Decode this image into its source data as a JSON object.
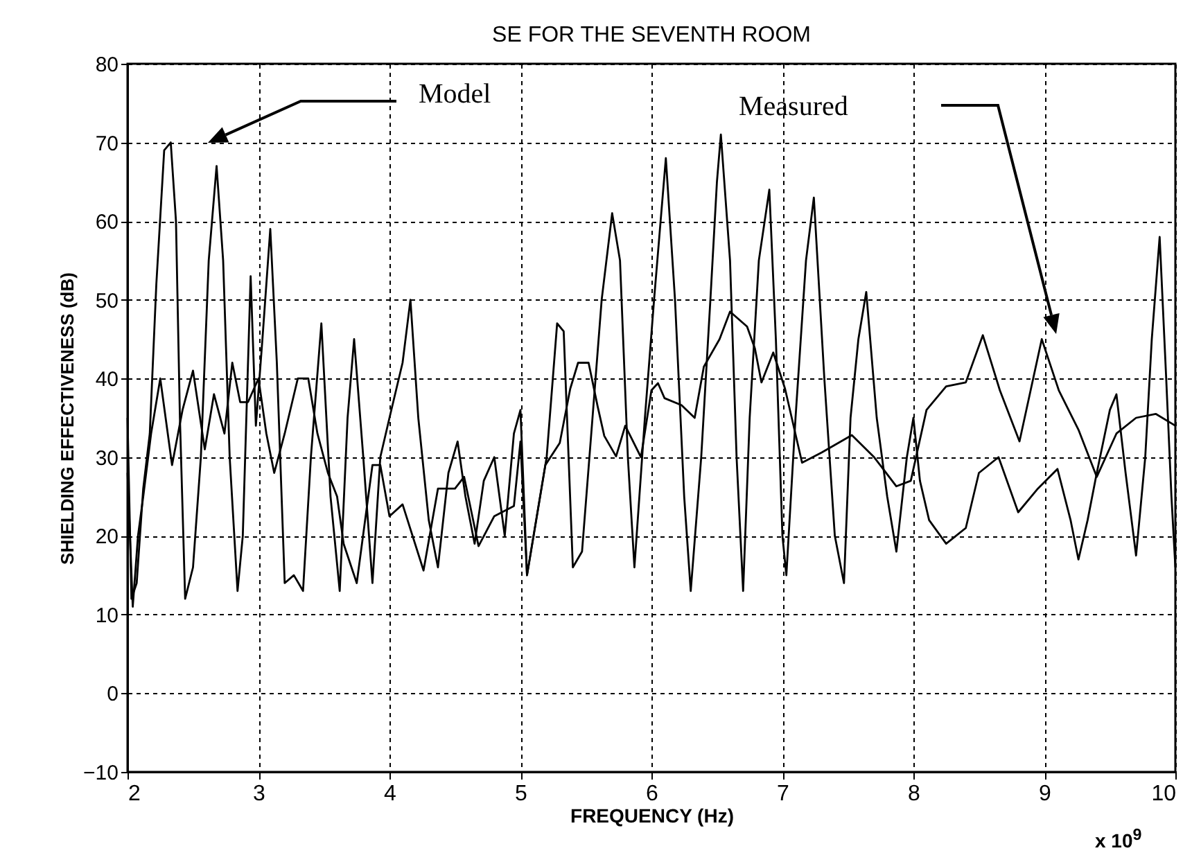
{
  "chart_data": {
    "type": "line",
    "title": "SE FOR THE SEVENTH ROOM",
    "xlabel": "FREQUENCY (Hz)",
    "ylabel": "SHIELDING EFFECTIVENESS (dB)",
    "xlim": [
      2,
      10
    ],
    "ylim": [
      -10,
      80
    ],
    "xticks": [
      2,
      3,
      4,
      5,
      6,
      7,
      8,
      9,
      10
    ],
    "yticks": [
      -10,
      0,
      10,
      20,
      30,
      40,
      50,
      60,
      70,
      80
    ],
    "grid": true,
    "annotations": [
      "Model",
      "Measured",
      "x 10$^{9}$"
    ],
    "series": [
      {
        "color": "#000000",
        "x": [
          2.0,
          2.03,
          2.07,
          2.12,
          2.17,
          2.22,
          2.28,
          2.33,
          2.37,
          2.4,
          2.44,
          2.5,
          2.56,
          2.62,
          2.68,
          2.73,
          2.78,
          2.84,
          2.88,
          2.94,
          2.98,
          3.03,
          3.09,
          3.14,
          3.2,
          3.27,
          3.34,
          3.4,
          3.48,
          3.55,
          3.62,
          3.68,
          3.73,
          3.8,
          3.87,
          3.93,
          4.0,
          4.1,
          4.16,
          4.22,
          4.3,
          4.37,
          4.45,
          4.52,
          4.58,
          4.65,
          4.72,
          4.8,
          4.88,
          4.95,
          5.0,
          5.05,
          5.12,
          5.2,
          5.28,
          5.33,
          5.4,
          5.47,
          5.55,
          5.62,
          5.7,
          5.76,
          5.82,
          5.87,
          5.95,
          6.02,
          6.07,
          6.11,
          6.18,
          6.25,
          6.3,
          6.38,
          6.45,
          6.5,
          6.53,
          6.6,
          6.65,
          6.7,
          6.75,
          6.82,
          6.9,
          6.95,
          7.0,
          7.03,
          7.1,
          7.18,
          7.24,
          7.32,
          7.4,
          7.47,
          7.52,
          7.58,
          7.64,
          7.72,
          7.8,
          7.87,
          7.95,
          8.0,
          8.05,
          8.12,
          8.25,
          8.4,
          8.5,
          8.65,
          8.8,
          8.95,
          9.1,
          9.2,
          9.26,
          9.33,
          9.4,
          9.5,
          9.55,
          9.62,
          9.7,
          9.77,
          9.82,
          9.88,
          9.93,
          9.97,
          10.0
        ],
        "values": [
          35,
          12,
          14,
          26,
          33,
          52,
          69,
          70,
          60,
          35,
          12,
          16,
          30,
          55,
          67,
          55,
          30,
          13,
          20,
          53,
          34,
          45,
          59,
          42,
          14,
          15,
          13,
          30,
          47,
          25,
          13,
          35,
          45,
          30,
          14,
          30,
          35,
          42,
          50,
          35,
          22,
          16,
          28,
          32,
          25,
          19,
          27,
          30,
          20,
          33,
          36,
          15,
          22,
          30,
          47,
          46,
          16,
          18,
          35,
          50,
          61,
          55,
          30,
          16,
          35,
          50,
          60,
          68,
          50,
          25,
          13,
          30,
          50,
          65,
          71,
          55,
          30,
          13,
          35,
          55,
          64,
          45,
          20,
          15,
          35,
          55,
          63,
          40,
          20,
          14,
          35,
          45,
          51,
          35,
          25,
          18,
          30,
          35,
          27,
          22,
          19,
          21,
          28,
          30,
          23,
          26,
          28.5,
          22,
          17,
          22,
          28,
          36,
          38,
          28,
          17.5,
          30,
          45,
          58,
          40,
          25,
          16
        ]
      },
      {
        "color": "#000000",
        "x": [
          2.0,
          2.04,
          2.08,
          2.12,
          2.18,
          2.25,
          2.34,
          2.42,
          2.5,
          2.59,
          2.66,
          2.74,
          2.8,
          2.86,
          2.92,
          3.0,
          3.06,
          3.12,
          3.2,
          3.3,
          3.38,
          3.45,
          3.53,
          3.6,
          3.65,
          3.75,
          3.87,
          3.93,
          4.0,
          4.1,
          4.26,
          4.37,
          4.5,
          4.57,
          4.68,
          4.8,
          4.95,
          5.0,
          5.05,
          5.19,
          5.3,
          5.38,
          5.44,
          5.52,
          5.59,
          5.64,
          5.73,
          5.8,
          5.92,
          6.0,
          6.05,
          6.1,
          6.23,
          6.33,
          6.4,
          6.52,
          6.6,
          6.73,
          6.79,
          6.84,
          6.93,
          7.02,
          7.15,
          7.3,
          7.53,
          7.7,
          7.87,
          7.98,
          8.1,
          8.25,
          8.4,
          8.53,
          8.66,
          8.81,
          8.98,
          9.11,
          9.26,
          9.4,
          9.55,
          9.7,
          9.85,
          10.0
        ],
        "values": [
          28,
          11,
          20,
          25,
          33,
          40,
          29,
          36,
          41,
          31,
          38,
          33,
          42,
          37,
          37,
          40,
          33,
          28,
          33,
          40,
          40,
          33,
          28,
          25,
          19,
          14,
          29,
          29,
          22.5,
          24,
          15.6,
          26,
          26,
          27.5,
          18.7,
          22.5,
          23.8,
          32,
          15,
          29,
          31.8,
          38.7,
          42,
          42,
          36.4,
          32.7,
          30.1,
          34,
          30,
          38.5,
          39.4,
          37.5,
          36.6,
          35,
          41.5,
          45,
          48.5,
          46.6,
          43.8,
          39.5,
          43.3,
          38.7,
          29.3,
          30.6,
          32.8,
          30,
          26.3,
          27,
          36,
          39,
          39.5,
          45.5,
          38.5,
          32,
          45,
          38.5,
          33.5,
          27.5,
          33,
          35,
          35.5,
          34
        ]
      }
    ]
  }
}
